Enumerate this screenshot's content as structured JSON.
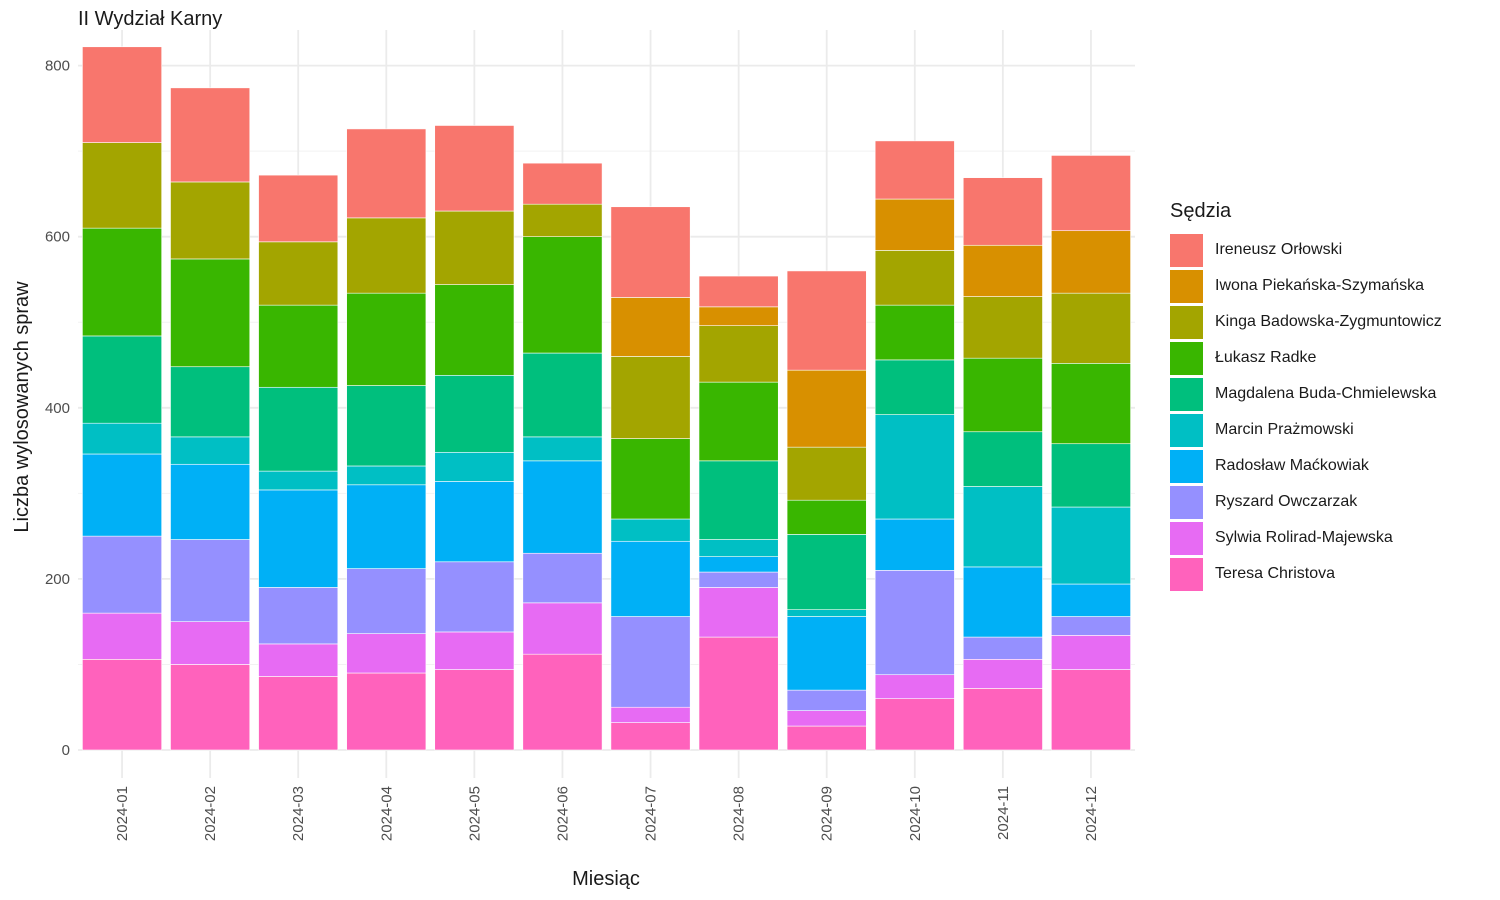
{
  "chart_data": {
    "type": "bar",
    "stacked": true,
    "title": "II Wydział Karny",
    "xlabel": "Miesiąc",
    "ylabel": "Liczba wylosowanych spraw",
    "ylim": [
      0,
      840
    ],
    "yticks": [
      0,
      200,
      400,
      600,
      800
    ],
    "grid": true,
    "legend_title": "Sędzia",
    "legend_position": "right",
    "categories": [
      "2024-01",
      "2024-02",
      "2024-03",
      "2024-04",
      "2024-05",
      "2024-06",
      "2024-07",
      "2024-08",
      "2024-09",
      "2024-10",
      "2024-11",
      "2024-12"
    ],
    "series": [
      {
        "name": "Ireneusz Orłowski",
        "color": "#F8766D",
        "values": [
          112,
          110,
          78,
          104,
          100,
          48,
          106,
          36,
          116,
          68,
          79,
          88
        ]
      },
      {
        "name": "Iwona Piekańska-Szymańska",
        "color": "#D89000",
        "values": [
          0,
          0,
          0,
          0,
          0,
          0,
          69,
          22,
          90,
          60,
          60,
          73
        ]
      },
      {
        "name": "Kinga Badowska-Zygmuntowicz",
        "color": "#A3A500",
        "values": [
          100,
          90,
          74,
          88,
          86,
          38,
          96,
          66,
          62,
          64,
          72,
          82
        ]
      },
      {
        "name": "Łukasz Radke",
        "color": "#39B600",
        "values": [
          126,
          126,
          96,
          108,
          106,
          136,
          94,
          92,
          40,
          64,
          86,
          94
        ]
      },
      {
        "name": "Magdalena Buda-Chmielewska",
        "color": "#00BF7D",
        "values": [
          102,
          82,
          98,
          94,
          90,
          98,
          0,
          92,
          88,
          64,
          64,
          74
        ]
      },
      {
        "name": "Marcin Prażmowski",
        "color": "#00BFC4",
        "values": [
          36,
          32,
          22,
          22,
          34,
          28,
          26,
          20,
          8,
          122,
          94,
          90
        ]
      },
      {
        "name": "Radosław Maćkowiak",
        "color": "#00B0F6",
        "values": [
          96,
          88,
          114,
          98,
          94,
          108,
          88,
          18,
          86,
          60,
          82,
          38
        ]
      },
      {
        "name": "Ryszard Owczarzak",
        "color": "#9590FF",
        "values": [
          90,
          96,
          66,
          76,
          82,
          58,
          106,
          18,
          24,
          122,
          26,
          22
        ]
      },
      {
        "name": "Sylwia Rolirad-Majewska",
        "color": "#E76BF3",
        "values": [
          54,
          50,
          38,
          46,
          44,
          60,
          18,
          58,
          18,
          28,
          34,
          40
        ]
      },
      {
        "name": "Teresa Christova",
        "color": "#FF62BC",
        "values": [
          106,
          100,
          86,
          90,
          94,
          112,
          32,
          132,
          28,
          60,
          72,
          94
        ]
      }
    ]
  }
}
